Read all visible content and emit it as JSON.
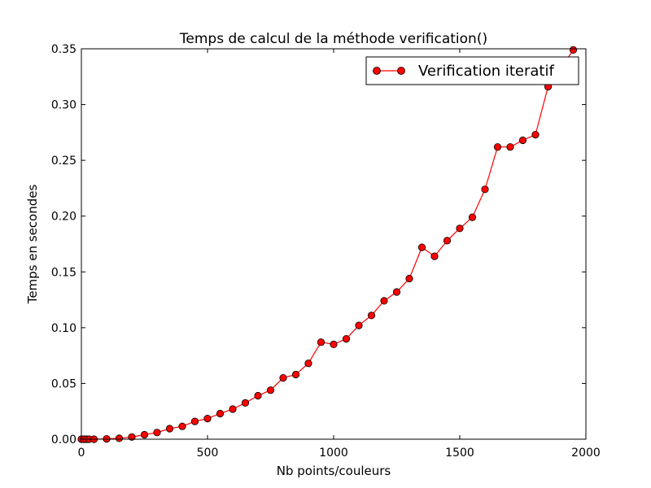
{
  "chart_data": {
    "type": "line",
    "title": "Temps de calcul de la méthode verification()",
    "xlabel": "Nb points/couleurs",
    "ylabel": "Temps en secondes",
    "xlim": [
      0,
      2000
    ],
    "ylim": [
      0,
      0.35
    ],
    "x_ticks": [
      "0",
      "500",
      "1000",
      "1500",
      "2000"
    ],
    "y_ticks": [
      "0.00",
      "0.05",
      "0.10",
      "0.15",
      "0.20",
      "0.25",
      "0.30",
      "0.35"
    ],
    "grid": false,
    "legend_position": "top-right",
    "series": [
      {
        "name": "Verification iteratif",
        "color": "#ff0000",
        "marker": "circle",
        "x": [
          0,
          10,
          20,
          30,
          50,
          100,
          150,
          200,
          250,
          300,
          350,
          400,
          450,
          500,
          550,
          600,
          650,
          700,
          750,
          800,
          850,
          900,
          950,
          1000,
          1050,
          1100,
          1150,
          1200,
          1250,
          1300,
          1350,
          1400,
          1450,
          1500,
          1550,
          1600,
          1650,
          1700,
          1750,
          1800,
          1850,
          1950
        ],
        "y": [
          0.0,
          0.0,
          0.0,
          0.0,
          0.0,
          0.0003,
          0.0008,
          0.002,
          0.004,
          0.006,
          0.0095,
          0.0115,
          0.016,
          0.0185,
          0.023,
          0.027,
          0.0325,
          0.039,
          0.044,
          0.055,
          0.058,
          0.068,
          0.087,
          0.085,
          0.09,
          0.102,
          0.111,
          0.124,
          0.132,
          0.144,
          0.172,
          0.164,
          0.178,
          0.189,
          0.199,
          0.224,
          0.262,
          0.262,
          0.268,
          0.273,
          0.316,
          0.349
        ]
      }
    ]
  }
}
